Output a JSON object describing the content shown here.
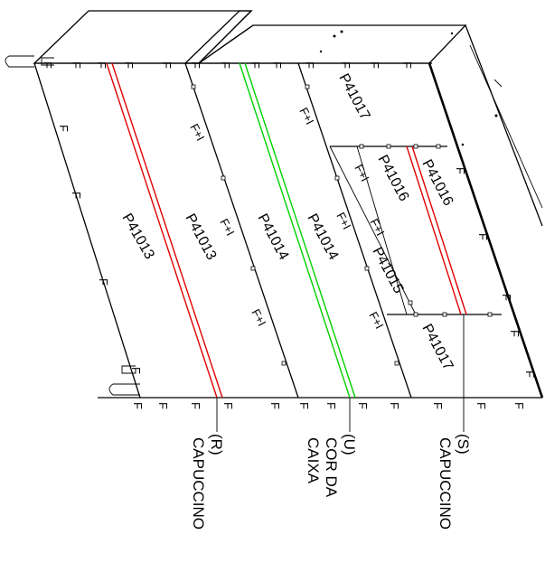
{
  "panels": {
    "p41013_a": "P41013",
    "p41013_b": "P41013",
    "p41014_a": "P41014",
    "p41014_b": "P41014",
    "p41017_top": "P41017",
    "p41016_a": "P41016",
    "p41016_b": "P41016",
    "p41015": "P41015",
    "p41017_bottom": "P41017"
  },
  "joint_labels": {
    "fi_1": "F+I",
    "fi_2": "F+I",
    "fi_3": "F+I",
    "fi_4": "F+I",
    "fi_5": "F+I",
    "fi_6": "F+I",
    "fi_7": "F+I",
    "fi_8": "F+I"
  },
  "edge_mark": "F",
  "callouts": {
    "r_code": "(R)",
    "r_color": "CAPUCCINO",
    "u_code": "(U)",
    "u_color_1": "COR DA",
    "u_color_2": "CAIXA",
    "s_code": "(S)",
    "s_color": "CAPUCCINO"
  },
  "colors": {
    "red_edge": "#e00000",
    "green_edge": "#00d000",
    "line": "#000000"
  }
}
